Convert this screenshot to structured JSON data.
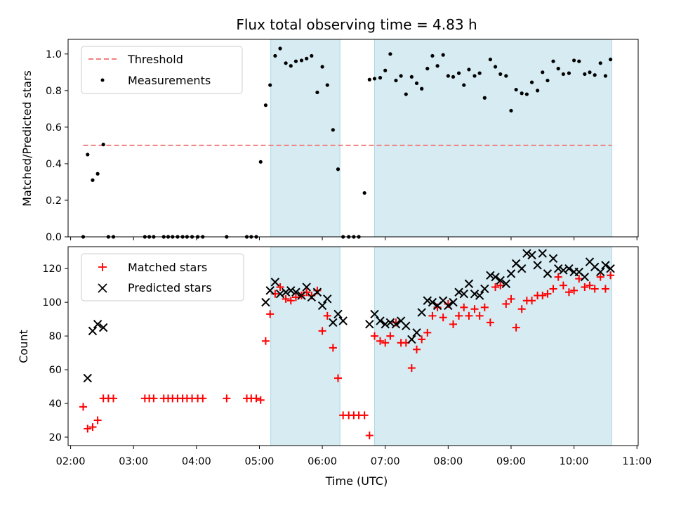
{
  "chart_data": [
    {
      "type": "scatter",
      "title": "Flux total observing time = 4.83 h",
      "ylabel": "Matched/Predicted stars",
      "ylim": [
        0,
        1.08
      ],
      "yticks": [
        "0.0",
        "0.2",
        "0.4",
        "0.6",
        "0.8",
        "1.0"
      ],
      "xlim_hours": [
        1.96,
        11.02
      ],
      "shaded_intervals_hours": [
        [
          5.18,
          6.28
        ],
        [
          6.83,
          10.6
        ]
      ],
      "threshold": {
        "name": "Threshold",
        "value": 0.5,
        "x_range_hours": [
          2.2,
          10.6
        ],
        "color": "#f08080"
      },
      "legend": [
        "Threshold",
        "Measurements"
      ],
      "series": [
        {
          "name": "Measurements",
          "color": "#000000",
          "x": [
            2.2,
            2.27,
            2.35,
            2.43,
            2.52,
            2.6,
            2.68,
            3.18,
            3.25,
            3.32,
            3.48,
            3.55,
            3.62,
            3.7,
            3.78,
            3.85,
            3.93,
            4.02,
            4.1,
            4.48,
            4.8,
            4.87,
            4.95,
            5.02,
            5.1,
            5.17,
            5.25,
            5.33,
            5.42,
            5.5,
            5.58,
            5.67,
            5.75,
            5.83,
            5.92,
            6.0,
            6.08,
            6.17,
            6.25,
            6.33,
            6.42,
            6.5,
            6.58,
            6.67,
            6.75,
            6.83,
            6.92,
            7.0,
            7.08,
            7.17,
            7.25,
            7.33,
            7.42,
            7.5,
            7.58,
            7.67,
            7.75,
            7.83,
            7.92,
            8.0,
            8.08,
            8.17,
            8.25,
            8.33,
            8.42,
            8.5,
            8.58,
            8.67,
            8.75,
            8.83,
            8.92,
            9.0,
            9.08,
            9.17,
            9.25,
            9.33,
            9.42,
            9.5,
            9.58,
            9.67,
            9.75,
            9.83,
            9.92,
            10.0,
            10.08,
            10.17,
            10.25,
            10.33,
            10.42,
            10.5,
            10.58
          ],
          "y": [
            0.0,
            0.45,
            0.31,
            0.345,
            0.505,
            0.0,
            0.0,
            0.0,
            0.0,
            0.0,
            0.0,
            0.0,
            0.0,
            0.0,
            0.0,
            0.0,
            0.0,
            0.0,
            0.0,
            0.0,
            0.0,
            0.0,
            0.0,
            0.41,
            0.72,
            0.83,
            0.99,
            1.03,
            0.95,
            0.935,
            0.96,
            0.965,
            0.975,
            0.99,
            0.79,
            0.93,
            0.83,
            0.585,
            0.37,
            0.0,
            0.0,
            0.0,
            0.0,
            0.24,
            0.86,
            0.865,
            0.87,
            0.91,
            1.0,
            0.855,
            0.88,
            0.78,
            0.875,
            0.84,
            0.81,
            0.92,
            0.99,
            0.935,
            0.995,
            0.88,
            0.875,
            0.895,
            0.83,
            0.915,
            0.88,
            0.895,
            0.76,
            0.97,
            0.93,
            0.89,
            0.88,
            0.69,
            0.805,
            0.785,
            0.78,
            0.845,
            0.8,
            0.9,
            0.855,
            0.96,
            0.92,
            0.89,
            0.895,
            0.965,
            0.96,
            0.89,
            0.9,
            0.885,
            0.95,
            0.88,
            0.97
          ]
        }
      ]
    },
    {
      "type": "scatter",
      "title": "",
      "xlabel": "Time (UTC)",
      "ylabel": "Count",
      "ylim": [
        15,
        133
      ],
      "yticks": [
        "20",
        "40",
        "60",
        "80",
        "100",
        "120"
      ],
      "xticks": [
        "02:00",
        "03:00",
        "04:00",
        "05:00",
        "06:00",
        "07:00",
        "08:00",
        "09:00",
        "10:00",
        "11:00"
      ],
      "xlim_hours": [
        1.96,
        11.02
      ],
      "shaded_intervals_hours": [
        [
          5.18,
          6.28
        ],
        [
          6.83,
          10.6
        ]
      ],
      "legend": [
        "Matched stars",
        "Predicted stars"
      ],
      "series": [
        {
          "name": "Matched stars",
          "color": "#ff0000",
          "marker": "+",
          "x": [
            2.2,
            2.27,
            2.35,
            2.43,
            2.52,
            2.6,
            2.68,
            3.18,
            3.25,
            3.32,
            3.48,
            3.55,
            3.62,
            3.7,
            3.78,
            3.85,
            3.93,
            4.02,
            4.1,
            4.48,
            4.8,
            4.87,
            4.95,
            5.02,
            5.1,
            5.17,
            5.25,
            5.33,
            5.42,
            5.5,
            5.58,
            5.67,
            5.75,
            5.83,
            5.92,
            6.0,
            6.08,
            6.17,
            6.25,
            6.33,
            6.42,
            6.5,
            6.58,
            6.67,
            6.75,
            6.83,
            6.92,
            7.0,
            7.08,
            7.17,
            7.25,
            7.33,
            7.42,
            7.5,
            7.58,
            7.67,
            7.75,
            7.83,
            7.92,
            8.0,
            8.08,
            8.17,
            8.25,
            8.33,
            8.42,
            8.5,
            8.58,
            8.67,
            8.75,
            8.83,
            8.92,
            9.0,
            9.08,
            9.17,
            9.25,
            9.33,
            9.42,
            9.5,
            9.58,
            9.67,
            9.75,
            9.83,
            9.92,
            10.0,
            10.08,
            10.17,
            10.25,
            10.33,
            10.42,
            10.5,
            10.58
          ],
          "y": [
            38,
            25,
            26,
            30,
            43,
            43,
            43,
            43,
            43,
            43,
            43,
            43,
            43,
            43,
            43,
            43,
            43,
            43,
            43,
            43,
            43,
            43,
            43,
            42,
            77,
            93,
            105,
            109,
            102,
            101,
            103,
            104,
            106,
            104,
            107,
            83,
            92,
            73,
            55,
            33,
            33,
            33,
            33,
            33,
            21,
            80,
            77,
            76,
            80,
            88,
            76,
            76,
            61,
            72,
            78,
            82,
            92,
            97,
            91,
            99,
            87,
            92,
            97,
            92,
            96,
            92,
            97,
            88,
            109,
            110,
            99,
            102,
            85,
            96,
            101,
            101,
            104,
            104,
            105,
            108,
            115,
            110,
            106,
            107,
            114,
            109,
            110,
            108,
            115,
            108,
            116
          ]
        },
        {
          "name": "Predicted stars",
          "color": "#000000",
          "marker": "x",
          "x": [
            2.27,
            2.35,
            2.43,
            2.52,
            5.1,
            5.17,
            5.25,
            5.33,
            5.42,
            5.5,
            5.58,
            5.67,
            5.75,
            5.83,
            5.92,
            6.0,
            6.08,
            6.17,
            6.25,
            6.33,
            6.75,
            6.83,
            6.92,
            7.0,
            7.08,
            7.17,
            7.25,
            7.33,
            7.42,
            7.5,
            7.58,
            7.67,
            7.75,
            7.83,
            7.92,
            8.0,
            8.08,
            8.17,
            8.25,
            8.33,
            8.42,
            8.5,
            8.58,
            8.67,
            8.75,
            8.83,
            8.92,
            9.0,
            9.08,
            9.17,
            9.25,
            9.33,
            9.42,
            9.5,
            9.58,
            9.67,
            9.75,
            9.83,
            9.92,
            10.0,
            10.08,
            10.17,
            10.25,
            10.33,
            10.42,
            10.5,
            10.58
          ],
          "y": [
            55,
            83,
            87,
            85,
            100,
            107,
            112,
            105,
            106,
            107,
            106,
            104,
            109,
            103,
            106,
            98,
            102,
            88,
            93,
            89,
            87,
            93,
            89,
            87,
            88,
            87,
            89,
            86,
            78,
            82,
            94,
            101,
            100,
            98,
            101,
            98,
            100,
            106,
            105,
            111,
            105,
            104,
            108,
            116,
            115,
            113,
            111,
            117,
            123,
            120,
            129,
            128,
            122,
            129,
            117,
            126,
            120,
            119,
            120,
            118,
            118,
            115,
            124,
            121,
            118,
            122,
            120
          ]
        }
      ]
    }
  ]
}
